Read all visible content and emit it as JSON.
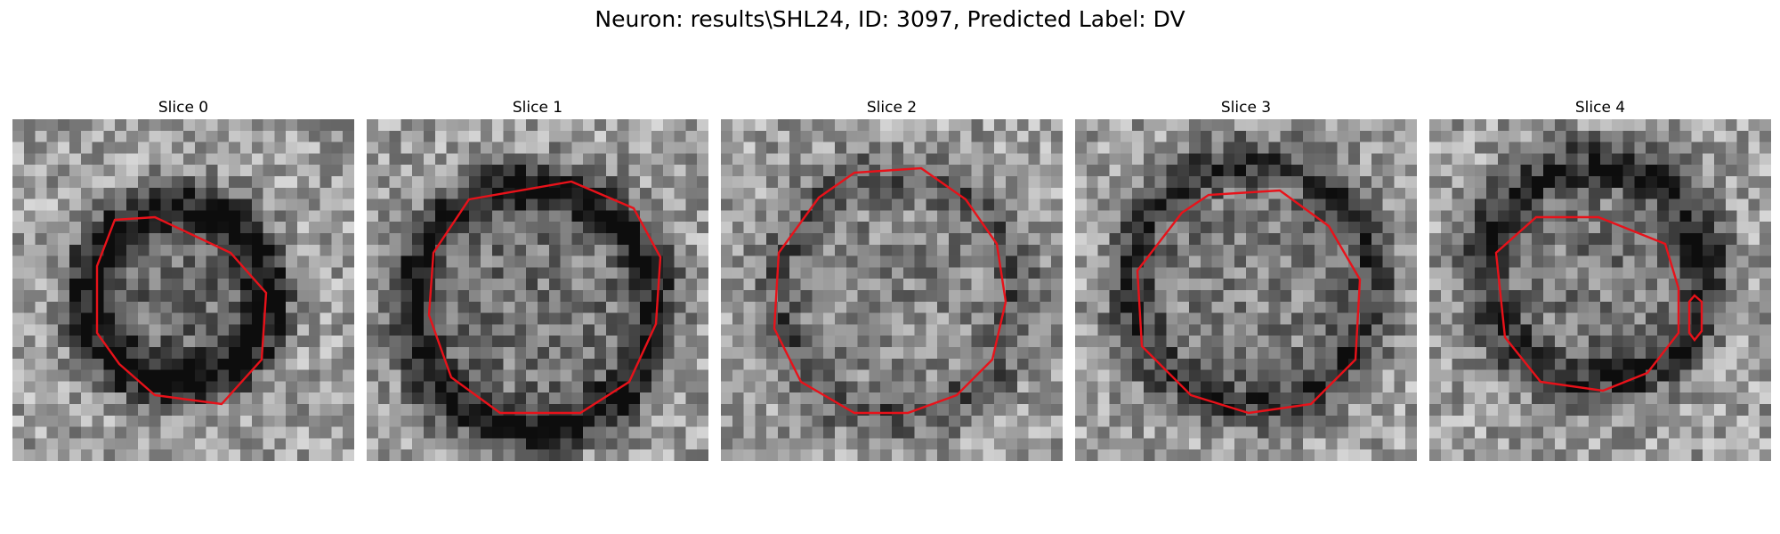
{
  "figure": {
    "suptitle": "Neuron: results\\SHL24, ID: 3097, Predicted Label: DV"
  },
  "panels": [
    {
      "title": "Slice 0"
    },
    {
      "title": "Slice 1"
    },
    {
      "title": "Slice 2"
    },
    {
      "title": "Slice 3"
    },
    {
      "title": "Slice 4"
    }
  ],
  "colors": {
    "contour": "#e8121a",
    "background": "#ffffff"
  }
}
